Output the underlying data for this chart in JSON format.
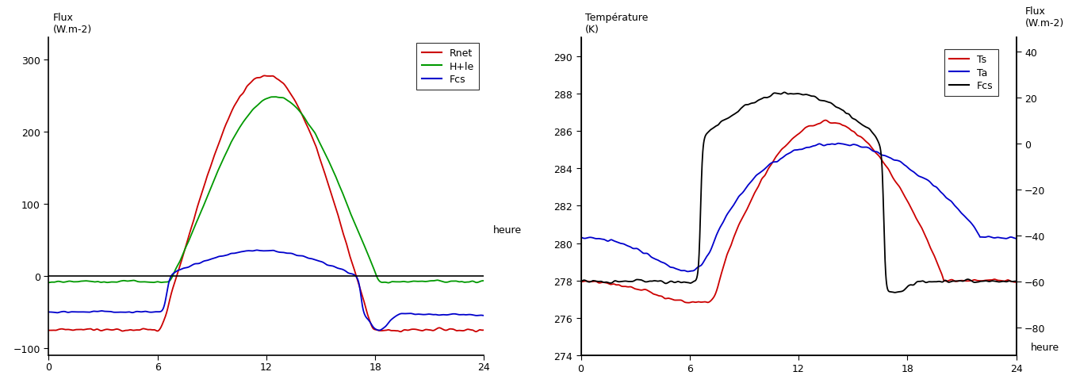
{
  "left": {
    "title_line1": "Flux",
    "title_line2": "(W.m-2)",
    "xlabel": "heure",
    "ylim": [
      -110,
      330
    ],
    "xlim": [
      0,
      24
    ],
    "yticks": [
      -100,
      0,
      100,
      200,
      300
    ],
    "xticks": [
      0,
      6,
      12,
      18,
      24
    ],
    "legend": [
      "Rnet",
      "H+le",
      "Fcs"
    ],
    "colors": [
      "#cc0000",
      "#009900",
      "#0000cc"
    ]
  },
  "right": {
    "title_left_line1": "Température",
    "title_left_line2": "(K)",
    "title_right_line1": "Flux",
    "title_right_line2": "(W.m-2)",
    "xlabel": "heure",
    "ylim_left": [
      274,
      291
    ],
    "ylim_right": [
      -92,
      46
    ],
    "xlim": [
      0,
      24
    ],
    "yticks_left": [
      274,
      276,
      278,
      280,
      282,
      284,
      286,
      288,
      290
    ],
    "yticks_right": [
      -80,
      -60,
      -40,
      -20,
      0,
      20,
      40
    ],
    "xticks": [
      0,
      6,
      12,
      18,
      24
    ],
    "legend": [
      "Ts",
      "Ta",
      "Fcs"
    ],
    "colors": [
      "#cc0000",
      "#0000cc",
      "#000000"
    ]
  }
}
